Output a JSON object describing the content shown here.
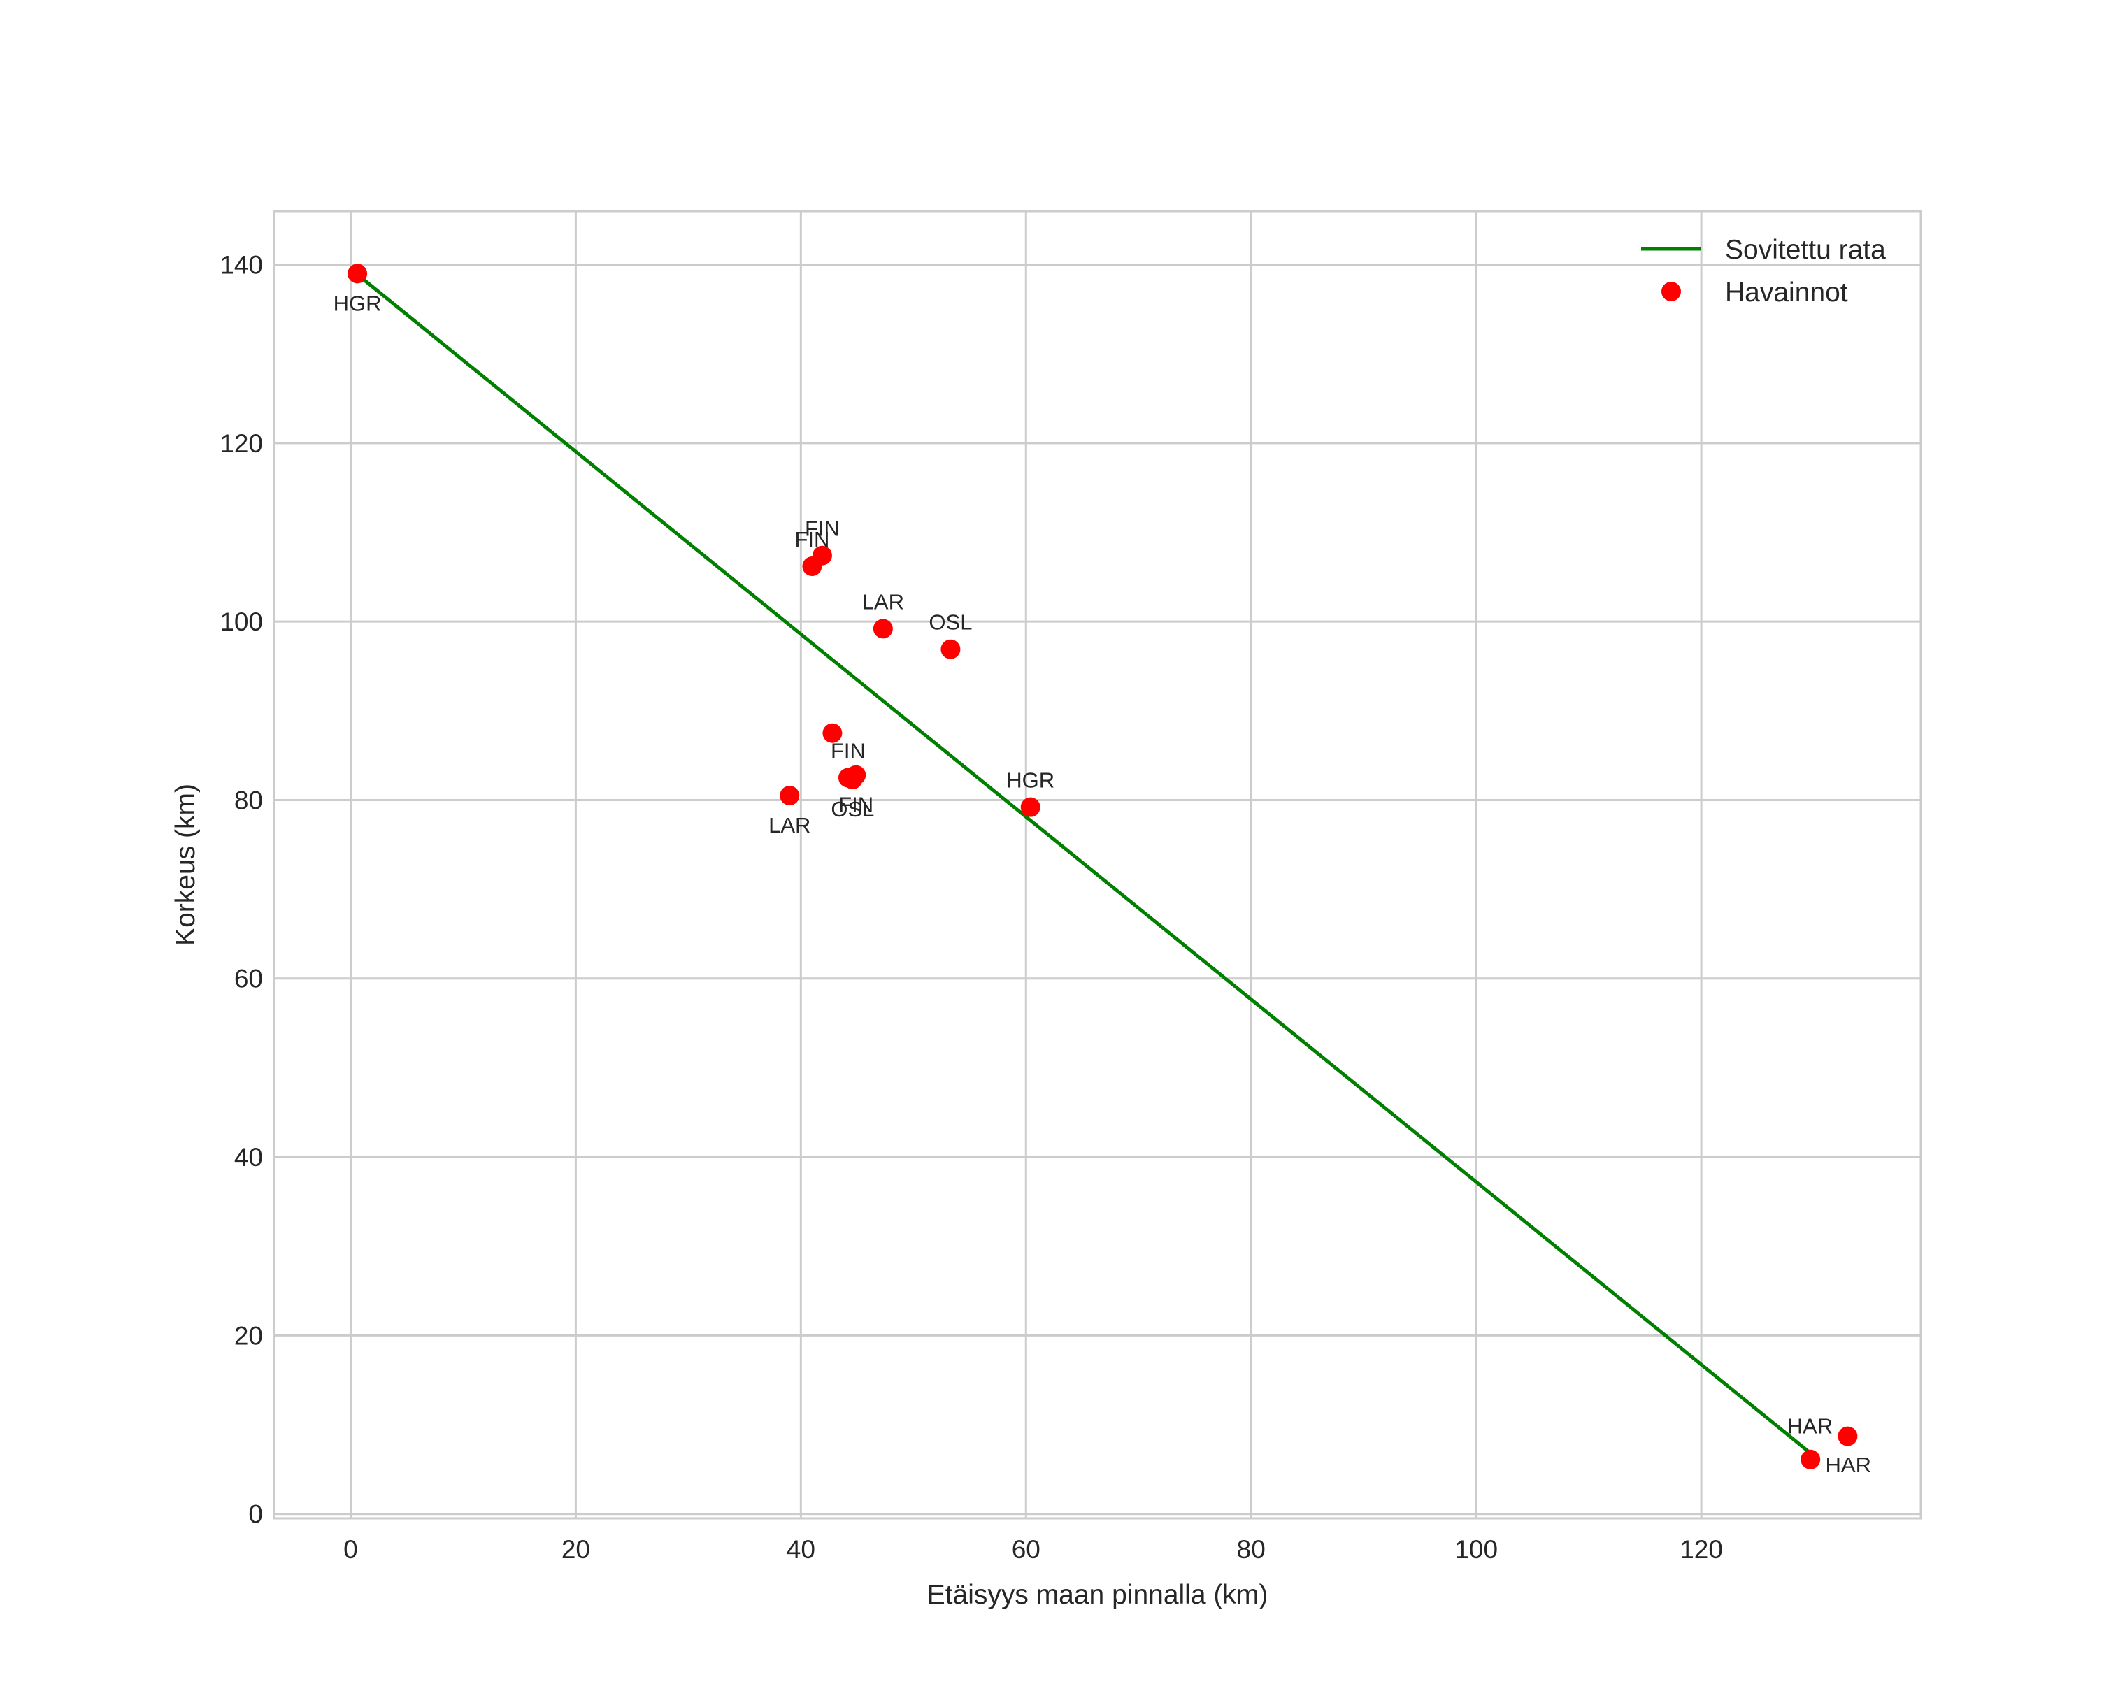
{
  "chart_data": {
    "type": "scatter",
    "title": "",
    "xlabel": "Etäisyys maan pinnalla (km)",
    "ylabel": "Korkeus (km)",
    "xlim": [
      -6.8,
      139.5
    ],
    "ylim": [
      -0.5,
      146
    ],
    "xticks": [
      0,
      20,
      40,
      60,
      80,
      100,
      120
    ],
    "yticks": [
      0,
      20,
      40,
      60,
      80,
      100,
      120,
      140
    ],
    "grid": true,
    "legend_position": "top-right",
    "colors": {
      "line": "#007f00",
      "points": "#ff0000",
      "grid": "#cccccc",
      "frame": "#cccccc"
    },
    "series": [
      {
        "name": "Sovitettu rata",
        "kind": "line",
        "x": [
          0.5,
          130
        ],
        "y": [
          139,
          6.5
        ]
      },
      {
        "name": "Havainnot",
        "kind": "scatter",
        "points": [
          {
            "x": 0.6,
            "y": 139.0,
            "label": "HGR",
            "label_pos": "below"
          },
          {
            "x": 41.0,
            "y": 106.2,
            "label": "FIN",
            "label_pos": "above"
          },
          {
            "x": 41.9,
            "y": 107.4,
            "label": "FIN",
            "label_pos": "above"
          },
          {
            "x": 47.3,
            "y": 99.2,
            "label": "LAR",
            "label_pos": "above"
          },
          {
            "x": 53.3,
            "y": 96.9,
            "label": "OSL",
            "label_pos": "above"
          },
          {
            "x": 42.8,
            "y": 87.5,
            "label": "",
            "label_pos": "above"
          },
          {
            "x": 44.2,
            "y": 82.5,
            "label": "FIN",
            "label_pos": "above"
          },
          {
            "x": 44.9,
            "y": 82.8,
            "label": "FIN",
            "label_pos": "below"
          },
          {
            "x": 44.6,
            "y": 82.3,
            "label": "OSL",
            "label_pos": "below"
          },
          {
            "x": 39.0,
            "y": 80.5,
            "label": "LAR",
            "label_pos": "below"
          },
          {
            "x": 60.4,
            "y": 79.2,
            "label": "HGR",
            "label_pos": "above"
          },
          {
            "x": 133.0,
            "y": 8.7,
            "label": "HAR",
            "label_pos": "above-left"
          },
          {
            "x": 129.7,
            "y": 6.1,
            "label": "HAR",
            "label_pos": "below-right"
          }
        ]
      }
    ]
  }
}
